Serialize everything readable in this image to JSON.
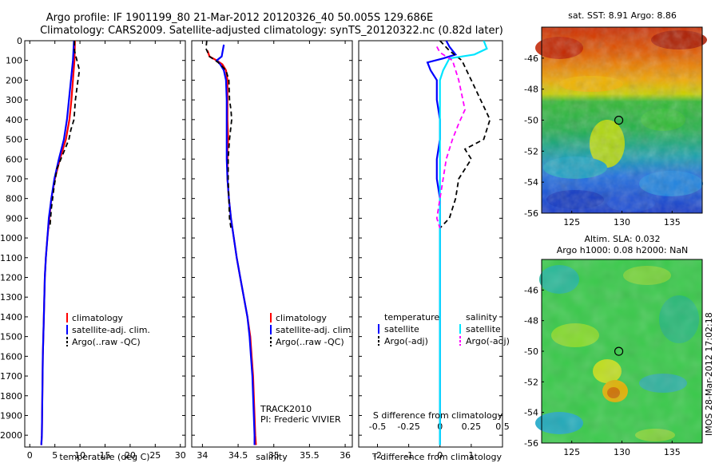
{
  "title_line1": "Argo profile: IF 1901199_80 21-Mar-2012 20120326_40 50.005S 129.686E",
  "title_line2": "Climatology: CARS2009. Satellite-adjusted climatology: synTS_20120322.nc (0.82d later)",
  "footer_stamp": "IMOS 28-Mar-2012 17:02:18",
  "colors": {
    "climatology": "#ff0000",
    "satellite": "#0000ff",
    "argo": "#000000",
    "sal_diff_sat": "#00e5ff",
    "sal_diff_argo": "#ff00ff"
  },
  "chart_data": [
    {
      "type": "line",
      "name": "temperature-panel",
      "xlabel": "temperature (deg C)",
      "ylim": [
        2060,
        0
      ],
      "xlim": [
        -1,
        31
      ],
      "xticks": [
        0,
        5,
        10,
        15,
        20,
        25,
        30
      ],
      "yticks": [
        0,
        100,
        200,
        300,
        400,
        500,
        600,
        700,
        800,
        900,
        1000,
        1100,
        1200,
        1300,
        1400,
        1500,
        1600,
        1700,
        1800,
        1900,
        2000
      ],
      "legend": [
        "climatology",
        "satellite-adj. clim.",
        "Argo(..raw -QC)"
      ],
      "series": [
        {
          "name": "climatology",
          "color": "#ff0000",
          "dash": "",
          "points": [
            [
              9.0,
              0
            ],
            [
              8.9,
              100
            ],
            [
              8.6,
              200
            ],
            [
              8.3,
              300
            ],
            [
              7.9,
              400
            ],
            [
              7.2,
              500
            ],
            [
              6.0,
              600
            ],
            [
              5.0,
              700
            ],
            [
              4.3,
              800
            ],
            [
              3.9,
              900
            ],
            [
              3.5,
              1000
            ],
            [
              3.2,
              1100
            ],
            [
              3.0,
              1200
            ],
            [
              2.8,
              1400
            ],
            [
              2.6,
              1600
            ],
            [
              2.5,
              1800
            ],
            [
              2.4,
              2000
            ],
            [
              2.3,
              2050
            ]
          ]
        },
        {
          "name": "satellite-adj. clim.",
          "color": "#0000ff",
          "dash": "",
          "points": [
            [
              8.8,
              0
            ],
            [
              8.6,
              100
            ],
            [
              8.2,
              200
            ],
            [
              7.8,
              300
            ],
            [
              7.4,
              400
            ],
            [
              6.8,
              500
            ],
            [
              5.8,
              600
            ],
            [
              4.9,
              700
            ],
            [
              4.3,
              800
            ],
            [
              3.8,
              900
            ],
            [
              3.5,
              1000
            ],
            [
              3.2,
              1100
            ],
            [
              3.0,
              1200
            ],
            [
              2.8,
              1400
            ],
            [
              2.6,
              1600
            ],
            [
              2.5,
              1800
            ],
            [
              2.4,
              2000
            ],
            [
              2.3,
              2050
            ]
          ]
        },
        {
          "name": "Argo(..raw -QC)",
          "color": "#000000",
          "dash": "6,4",
          "points": [
            [
              8.9,
              0
            ],
            [
              8.9,
              50
            ],
            [
              9.4,
              100
            ],
            [
              9.9,
              150
            ],
            [
              9.6,
              200
            ],
            [
              9.1,
              300
            ],
            [
              8.8,
              400
            ],
            [
              8.2,
              450
            ],
            [
              7.8,
              500
            ],
            [
              7.0,
              550
            ],
            [
              6.2,
              600
            ],
            [
              5.4,
              650
            ],
            [
              4.8,
              750
            ],
            [
              4.3,
              850
            ],
            [
              4.0,
              950
            ]
          ]
        }
      ]
    },
    {
      "type": "line",
      "name": "salinity-panel",
      "xlabel": "salinity",
      "ylim": [
        2060,
        0
      ],
      "xlim": [
        33.85,
        36.1
      ],
      "xticks": [
        34,
        34.5,
        35,
        35.5,
        36
      ],
      "legend": [
        "climatology",
        "satellite-adj. clim.",
        "Argo(..raw -QC)"
      ],
      "annotation": [
        "TRACK2010",
        "PI: Frederic VIVIER"
      ],
      "series": [
        {
          "name": "climatology",
          "color": "#ff0000",
          "dash": "",
          "points": [
            [
              34.07,
              50
            ],
            [
              34.1,
              80
            ],
            [
              34.2,
              100
            ],
            [
              34.28,
              120
            ],
            [
              34.33,
              150
            ],
            [
              34.35,
              200
            ],
            [
              34.35,
              300
            ],
            [
              34.35,
              400
            ],
            [
              34.36,
              500
            ],
            [
              34.35,
              550
            ],
            [
              34.35,
              600
            ],
            [
              34.35,
              700
            ],
            [
              34.37,
              800
            ],
            [
              34.4,
              900
            ],
            [
              34.44,
              1000
            ],
            [
              34.48,
              1100
            ],
            [
              34.53,
              1200
            ],
            [
              34.58,
              1300
            ],
            [
              34.63,
              1400
            ],
            [
              34.67,
              1500
            ],
            [
              34.69,
              1600
            ],
            [
              34.71,
              1700
            ],
            [
              34.72,
              1800
            ],
            [
              34.73,
              1900
            ],
            [
              34.74,
              2000
            ],
            [
              34.75,
              2050
            ]
          ]
        },
        {
          "name": "satellite-adj. clim.",
          "color": "#0000ff",
          "dash": "",
          "points": [
            [
              34.3,
              20
            ],
            [
              34.28,
              60
            ],
            [
              34.27,
              80
            ],
            [
              34.2,
              100
            ],
            [
              34.25,
              120
            ],
            [
              34.3,
              150
            ],
            [
              34.33,
              200
            ],
            [
              34.34,
              300
            ],
            [
              34.34,
              400
            ],
            [
              34.34,
              500
            ],
            [
              34.34,
              600
            ],
            [
              34.35,
              700
            ],
            [
              34.37,
              800
            ],
            [
              34.4,
              900
            ],
            [
              34.44,
              1000
            ],
            [
              34.48,
              1100
            ],
            [
              34.53,
              1200
            ],
            [
              34.58,
              1300
            ],
            [
              34.63,
              1400
            ],
            [
              34.66,
              1500
            ],
            [
              34.68,
              1600
            ],
            [
              34.7,
              1700
            ],
            [
              34.71,
              1800
            ],
            [
              34.72,
              1900
            ],
            [
              34.73,
              2000
            ],
            [
              34.73,
              2050
            ]
          ]
        },
        {
          "name": "Argo(..raw -QC)",
          "color": "#000000",
          "dash": "6,4",
          "points": [
            [
              34.06,
              0
            ],
            [
              34.05,
              40
            ],
            [
              34.1,
              80
            ],
            [
              34.22,
              110
            ],
            [
              34.33,
              150
            ],
            [
              34.37,
              200
            ],
            [
              34.38,
              300
            ],
            [
              34.4,
              350
            ],
            [
              34.41,
              400
            ],
            [
              34.38,
              500
            ],
            [
              34.36,
              600
            ],
            [
              34.36,
              700
            ],
            [
              34.37,
              800
            ],
            [
              34.38,
              900
            ],
            [
              34.4,
              950
            ]
          ]
        }
      ]
    },
    {
      "type": "line",
      "name": "difference-panel",
      "xlabel": "T difference from climatology",
      "secondary_xlabel": "S difference from climatology",
      "ylim": [
        2060,
        0
      ],
      "xlim": [
        -2.6,
        2.0
      ],
      "xticks": [
        "-2",
        "-1",
        "0",
        "1"
      ],
      "secondary_xticks": [
        "-0.5",
        "-0.25",
        "0",
        "0.25",
        "0.5"
      ],
      "legend_headers": [
        "temperature",
        "salinity"
      ],
      "legend": [
        "satellite",
        "Argo(-adj)",
        "satellite",
        "Argo(-adj)"
      ],
      "series": [
        {
          "name": "temperature satellite",
          "color": "#0000ff",
          "dash": "",
          "points": [
            [
              0.2,
              0
            ],
            [
              0.3,
              30
            ],
            [
              0.5,
              70
            ],
            [
              0.1,
              90
            ],
            [
              -0.4,
              110
            ],
            [
              -0.3,
              150
            ],
            [
              -0.1,
              200
            ],
            [
              -0.1,
              300
            ],
            [
              0.0,
              400
            ],
            [
              0.0,
              500
            ],
            [
              -0.1,
              600
            ],
            [
              -0.1,
              700
            ],
            [
              0.0,
              800
            ],
            [
              0.0,
              900
            ],
            [
              0.0,
              1000
            ],
            [
              0.0,
              1200
            ],
            [
              0.0,
              1500
            ],
            [
              0.0,
              1800
            ],
            [
              0.0,
              2050
            ]
          ]
        },
        {
          "name": "temperature Argo(-adj)",
          "color": "#000000",
          "dash": "6,4",
          "points": [
            [
              0.0,
              0
            ],
            [
              0.3,
              50
            ],
            [
              0.7,
              100
            ],
            [
              1.0,
              200
            ],
            [
              1.3,
              300
            ],
            [
              1.6,
              400
            ],
            [
              1.4,
              500
            ],
            [
              0.8,
              550
            ],
            [
              1.0,
              600
            ],
            [
              0.6,
              700
            ],
            [
              0.5,
              800
            ],
            [
              0.3,
              900
            ],
            [
              0.0,
              950
            ]
          ]
        },
        {
          "name": "salinity satellite",
          "color": "#00e5ff",
          "dash": "",
          "points": [
            [
              1.4,
              0
            ],
            [
              1.5,
              40
            ],
            [
              1.1,
              70
            ],
            [
              0.3,
              90
            ],
            [
              0.1,
              150
            ],
            [
              0.0,
              200
            ],
            [
              0.0,
              300
            ],
            [
              0.0,
              500
            ],
            [
              0.0,
              800
            ],
            [
              0.0,
              1100
            ],
            [
              0.0,
              1500
            ],
            [
              0.0,
              1800
            ],
            [
              0.0,
              2050
            ]
          ]
        },
        {
          "name": "salinity Argo(-adj)",
          "color": "#ff00ff",
          "dash": "6,4",
          "points": [
            [
              -0.1,
              30
            ],
            [
              0.0,
              60
            ],
            [
              0.4,
              100
            ],
            [
              0.6,
              200
            ],
            [
              0.8,
              350
            ],
            [
              0.6,
              420
            ],
            [
              0.4,
              500
            ],
            [
              0.2,
              600
            ],
            [
              0.1,
              700
            ],
            [
              0.0,
              800
            ],
            [
              -0.1,
              900
            ],
            [
              0.0,
              950
            ]
          ]
        }
      ]
    },
    {
      "type": "heatmap",
      "name": "sst-map",
      "title": "sat. SST: 8.91  Argo: 8.86",
      "xlim": [
        122,
        138
      ],
      "ylim": [
        -56,
        -44
      ],
      "xticks": [
        125,
        130,
        135
      ],
      "yticks": [
        -46,
        -48,
        -50,
        -52,
        -54,
        -56
      ],
      "marker": [
        129.686,
        -50.005
      ]
    },
    {
      "type": "heatmap",
      "name": "sla-map",
      "title_line1": "Altim. SLA: 0.032",
      "title_line2": "Argo h1000: 0.08 h2000: NaN",
      "xlim": [
        122,
        138
      ],
      "ylim": [
        -56,
        -44
      ],
      "xticks": [
        125,
        130,
        135
      ],
      "yticks": [
        -46,
        -48,
        -50,
        -52,
        -54,
        -56
      ],
      "marker": [
        129.686,
        -50.005
      ]
    }
  ]
}
